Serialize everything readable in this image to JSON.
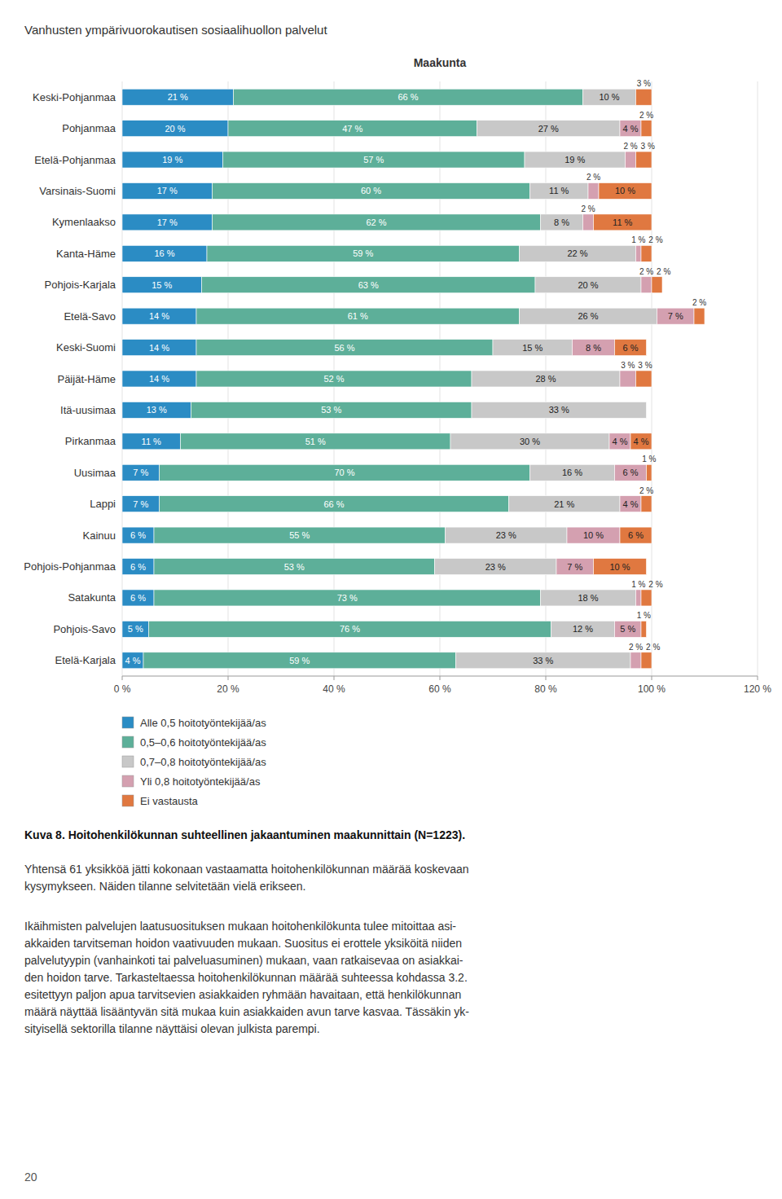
{
  "chart_data": {
    "type": "bar",
    "orientation": "horizontal",
    "stacked": true,
    "data_labels": true,
    "grid": true,
    "legend": "bottom",
    "title": "Vanhusten ympärivuorokautisen sosiaalihuollon palvelut",
    "subtitle": "Maakunta",
    "categories": [
      "Keski-Pohjanmaa",
      "Pohjanmaa",
      "Etelä-Pohjanmaa",
      "Varsinais-Suomi",
      "Kymenlaakso",
      "Kanta-Häme",
      "Pohjois-Karjala",
      "Etelä-Savo",
      "Keski-Suomi",
      "Päijät-Häme",
      "Itä-uusimaa",
      "Pirkanmaa",
      "Uusimaa",
      "Lappi",
      "Kainuu",
      "Pohjois-Pohjanmaa",
      "Satakunta",
      "Pohjois-Savo",
      "Etelä-Karjala"
    ],
    "series": [
      {
        "name": "Alle 0,5 hoitotyöntekijää/as",
        "color": "#2b8cc4",
        "values": [
          21,
          20,
          19,
          17,
          17,
          16,
          15,
          14,
          14,
          14,
          13,
          11,
          7,
          7,
          6,
          6,
          6,
          5,
          4
        ],
        "value_labels": [
          "21 %",
          "20 %",
          "19 %",
          "17 %",
          "17 %",
          "16 %",
          "15 %",
          "14 %",
          "14 %",
          "14 %",
          "13 %",
          "11 %",
          "7 %",
          "7 %",
          "6 %",
          "6 %",
          "6 %",
          "5 %",
          "4 %"
        ]
      },
      {
        "name": "0,5–0,6 hoitotyöntekijää/as",
        "color": "#5daf99",
        "values": [
          66,
          47,
          57,
          60,
          62,
          59,
          63,
          61,
          56,
          52,
          53,
          51,
          70,
          66,
          55,
          53,
          73,
          76,
          59
        ],
        "value_labels": [
          "66 %",
          "47 %",
          "57 %",
          "60 %",
          "62 %",
          "59 %",
          "63 %",
          "61 %",
          "56 %",
          "52 %",
          "53 %",
          "51 %",
          "70 %",
          "66 %",
          "55 %",
          "53 %",
          "73 %",
          "76 %",
          "59 %"
        ]
      },
      {
        "name": "0,7–0,8 hoitotyöntekijää/as",
        "color": "#c8c8c8",
        "values": [
          10,
          27,
          19,
          11,
          8,
          22,
          20,
          26,
          15,
          28,
          33,
          30,
          16,
          21,
          23,
          23,
          18,
          12,
          33
        ],
        "value_labels": [
          "10 %",
          "27 %",
          "19 %",
          "11 %",
          "8 %",
          "22 %",
          "20 %",
          "26 %",
          "15 %",
          "28 %",
          "33 %",
          "30 %",
          "16 %",
          "21 %",
          "23 %",
          "23 %",
          "18 %",
          "12 %",
          "33 %"
        ]
      },
      {
        "name": "Yli 0,8 hoitotyöntekijää/as",
        "color": "#d4a0b0",
        "values": [
          0,
          4,
          2,
          2,
          2,
          1,
          2,
          7,
          8,
          3,
          0,
          4,
          6,
          4,
          10,
          7,
          1,
          5,
          2
        ],
        "value_labels": [
          null,
          "4 %",
          "2 %",
          "2 %",
          "2 %",
          "1 %",
          "2 %",
          "7 %",
          "8 %",
          "3 %",
          null,
          "4 %",
          "6 %",
          "4 %",
          "10 %",
          "7 %",
          "1 %",
          "5 %",
          "2 %"
        ]
      },
      {
        "name": "Ei vastausta",
        "color": "#e07840",
        "values": [
          3,
          2,
          3,
          10,
          11,
          2,
          2,
          2,
          6,
          3,
          0,
          4,
          1,
          2,
          6,
          10,
          2,
          1,
          2
        ],
        "value_labels": [
          "3 %",
          "2 %",
          "3 %",
          "10 %",
          "11 %",
          "2 %",
          "2 %",
          "2 %",
          "6 %",
          "3 %",
          null,
          "4 %",
          "1 %",
          "2 %",
          "6 %",
          "10 %",
          "2 %",
          "1 %",
          "2 %"
        ]
      }
    ],
    "xlim": [
      0,
      120
    ],
    "xticks": [
      {
        "value": 0,
        "label": "0 %"
      },
      {
        "value": 20,
        "label": "20 %"
      },
      {
        "value": 40,
        "label": "40 %"
      },
      {
        "value": 60,
        "label": "60 %"
      },
      {
        "value": 80,
        "label": "80 %"
      },
      {
        "value": 100,
        "label": "100 %"
      },
      {
        "value": 120,
        "label": "120 %"
      }
    ],
    "annotations": [
      "Kuva 8. Hoitohenkilökunnan suhteellinen jakaantuminen maakunnittain (N=1223).",
      "Yhtensä 61 yksikköä jätti kokonaan vastaamatta hoitohenkilökunnan määrää koskevaan\nkysymykseen. Näiden tilanne selvitetään vielä erikseen.",
      "Ikäihmisten palvelujen laatusuosituksen mukaan hoitohenkilökunta tulee mitoittaa asi-\nakkaiden tarvitseman hoidon vaativuuden mukaan. Suositus ei erottele yksiköitä niiden\npalvelutyypin (vanhainkoti tai palveluasuminen) mukaan, vaan ratkaisevaa on asiakkai-\nden hoidon tarve. Tarkasteltaessa hoitohenkilökunnan määrää suhteessa kohdassa 3.2.\nesitettyyn paljon apua tarvitsevien asiakkaiden ryhmään havaitaan, että henkilökunnan\nmäärä näyttää lisääntyvän sitä mukaa kuin asiakkaiden avun tarve kasvaa. Tässäkin yk-\nsityisellä sektorilla tilanne näyttäisi olevan julkista parempi.",
      "20"
    ]
  }
}
